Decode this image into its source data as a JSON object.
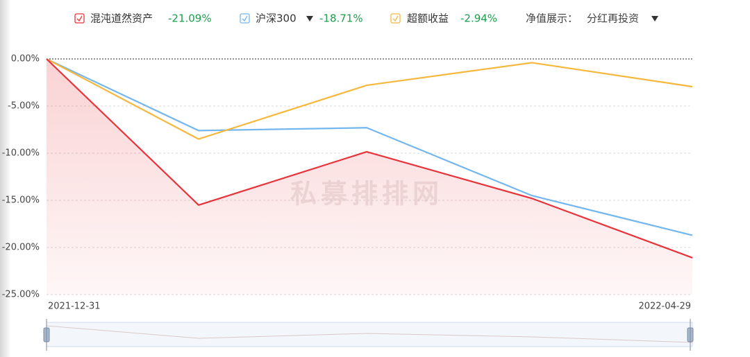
{
  "chart_data": {
    "type": "line",
    "categories": [
      "2021-12-31",
      null,
      null,
      null,
      "2022-04-29"
    ],
    "series": [
      {
        "name": "混沌道然资产",
        "return_label": "-21.09%",
        "color": "#e8333a",
        "area": true,
        "values": [
          0,
          -15.5,
          -9.85,
          -14.8,
          -21.09
        ]
      },
      {
        "name": "沪深300",
        "return_label": "-18.71%",
        "color": "#74b6ee",
        "values": [
          0,
          -7.6,
          -7.3,
          -14.5,
          -18.71
        ]
      },
      {
        "name": "超额收益",
        "return_label": "-2.94%",
        "color": "#f5b83d",
        "values": [
          0,
          -8.5,
          -2.8,
          -0.4,
          -2.94
        ]
      }
    ],
    "display_mode": {
      "label": "净值展示：",
      "value": "分红再投资"
    },
    "watermark": "私募排排网",
    "ylim": [
      -25,
      0
    ],
    "yticks": [
      {
        "value": 0,
        "label": "0.00%"
      },
      {
        "value": -5,
        "label": "-5.00%"
      },
      {
        "value": -10,
        "label": "-10.00%"
      },
      {
        "value": -15,
        "label": "-15.00%"
      },
      {
        "value": -20,
        "label": "-20.00%"
      },
      {
        "value": -25,
        "label": "-25.00%"
      }
    ],
    "grid": true,
    "return_color": "#1a9f4b"
  }
}
